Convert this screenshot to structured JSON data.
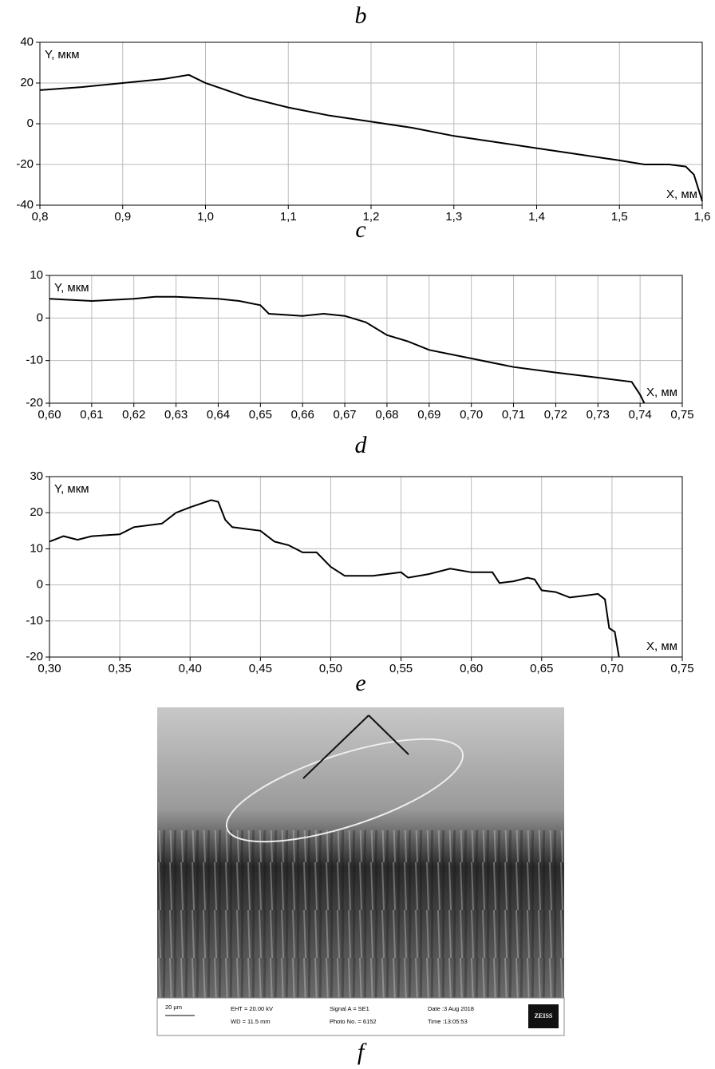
{
  "panel_labels": [
    "b",
    "c",
    "d",
    "e",
    "f"
  ],
  "chart_data": [
    {
      "type": "line",
      "xlabel": "X, мм",
      "ylabel": "Y, мкм",
      "color": "#000000",
      "grid": true,
      "x": [
        0.8,
        0.85,
        0.9,
        0.95,
        0.98,
        1.0,
        1.05,
        1.1,
        1.15,
        1.2,
        1.25,
        1.3,
        1.35,
        1.4,
        1.45,
        1.5,
        1.53,
        1.56,
        1.58,
        1.59,
        1.6
      ],
      "values": [
        16.5,
        18,
        20,
        22,
        24,
        20,
        13,
        8,
        4,
        1,
        -2,
        -6,
        -9,
        -12,
        -15,
        -18,
        -20,
        -20,
        -21,
        -25,
        -38
      ],
      "xlim": [
        0.8,
        1.6
      ],
      "ylim": [
        -40,
        40
      ],
      "xticks": [
        {
          "value": 0.8,
          "label": "0,8"
        },
        {
          "value": 0.9,
          "label": "0,9"
        },
        {
          "value": 1.0,
          "label": "1,0"
        },
        {
          "value": 1.1,
          "label": "1,1"
        },
        {
          "value": 1.2,
          "label": "1,2"
        },
        {
          "value": 1.3,
          "label": "1,3"
        },
        {
          "value": 1.4,
          "label": "1,4"
        },
        {
          "value": 1.5,
          "label": "1,5"
        },
        {
          "value": 1.6,
          "label": "1,6"
        }
      ],
      "yticks": [
        -40,
        -20,
        0,
        20,
        40
      ]
    },
    {
      "type": "line",
      "xlabel": "X, мм",
      "ylabel": "Y, мкм",
      "color": "#000000",
      "grid": true,
      "x": [
        0.6,
        0.61,
        0.62,
        0.625,
        0.63,
        0.64,
        0.645,
        0.65,
        0.652,
        0.66,
        0.665,
        0.67,
        0.675,
        0.68,
        0.685,
        0.69,
        0.7,
        0.71,
        0.72,
        0.73,
        0.738,
        0.74,
        0.741
      ],
      "values": [
        4.5,
        4,
        4.5,
        5,
        5,
        4.5,
        4,
        3,
        1,
        0.5,
        1,
        0.5,
        -1,
        -4,
        -5.5,
        -7.5,
        -9.5,
        -11.5,
        -12.8,
        -14,
        -15,
        -18,
        -20
      ],
      "xlim": [
        0.6,
        0.75
      ],
      "ylim": [
        -20,
        10
      ],
      "xticks": [
        {
          "value": 0.6,
          "label": "0,60"
        },
        {
          "value": 0.61,
          "label": "0,61"
        },
        {
          "value": 0.62,
          "label": "0,62"
        },
        {
          "value": 0.63,
          "label": "0,63"
        },
        {
          "value": 0.64,
          "label": "0,64"
        },
        {
          "value": 0.65,
          "label": "0,65"
        },
        {
          "value": 0.66,
          "label": "0,66"
        },
        {
          "value": 0.67,
          "label": "0,67"
        },
        {
          "value": 0.68,
          "label": "0,68"
        },
        {
          "value": 0.69,
          "label": "0,69"
        },
        {
          "value": 0.7,
          "label": "0,70"
        },
        {
          "value": 0.71,
          "label": "0,71"
        },
        {
          "value": 0.72,
          "label": "0,72"
        },
        {
          "value": 0.73,
          "label": "0,73"
        },
        {
          "value": 0.74,
          "label": "0,74"
        },
        {
          "value": 0.75,
          "label": "0,75"
        }
      ],
      "yticks": [
        -20,
        -10,
        0,
        10
      ]
    },
    {
      "type": "line",
      "xlabel": "X, мм",
      "ylabel": "Y, мкм",
      "color": "#000000",
      "grid": true,
      "x": [
        0.3,
        0.31,
        0.32,
        0.33,
        0.35,
        0.36,
        0.38,
        0.39,
        0.4,
        0.415,
        0.42,
        0.425,
        0.43,
        0.45,
        0.46,
        0.47,
        0.48,
        0.49,
        0.5,
        0.51,
        0.53,
        0.54,
        0.55,
        0.555,
        0.57,
        0.585,
        0.6,
        0.615,
        0.62,
        0.63,
        0.64,
        0.645,
        0.65,
        0.66,
        0.67,
        0.68,
        0.69,
        0.695,
        0.698,
        0.702,
        0.705
      ],
      "values": [
        12,
        13.5,
        12.5,
        13.5,
        14,
        16,
        17,
        20,
        21.5,
        23.5,
        23,
        18,
        16,
        15,
        12,
        11,
        9,
        9,
        5,
        2.5,
        2.5,
        3,
        3.5,
        2,
        3,
        4.5,
        3.5,
        3.5,
        0.5,
        1,
        2,
        1.5,
        -1.5,
        -2,
        -3.5,
        -3,
        -2.5,
        -4,
        -12,
        -13,
        -20
      ],
      "xlim": [
        0.3,
        0.75
      ],
      "ylim": [
        -20,
        30
      ],
      "xticks": [
        {
          "value": 0.3,
          "label": "0,30"
        },
        {
          "value": 0.35,
          "label": "0,35"
        },
        {
          "value": 0.4,
          "label": "0,40"
        },
        {
          "value": 0.45,
          "label": "0,45"
        },
        {
          "value": 0.5,
          "label": "0,50"
        },
        {
          "value": 0.55,
          "label": "0,55"
        },
        {
          "value": 0.6,
          "label": "0,60"
        },
        {
          "value": 0.65,
          "label": "0,65"
        },
        {
          "value": 0.7,
          "label": "0,70"
        },
        {
          "value": 0.75,
          "label": "0,75"
        }
      ],
      "yticks": [
        -20,
        -10,
        0,
        10,
        20,
        30
      ]
    }
  ],
  "image": {
    "scale": "20 µm",
    "eht": "EHT = 20.00 kV",
    "wd": "WD = 11.5 mm",
    "signal": "Signal A = SE1",
    "photo": "Photo No. = 6152",
    "date": "Date :3 Aug 2018",
    "time": "Time :13:05:53",
    "brand": "ZEISS"
  }
}
